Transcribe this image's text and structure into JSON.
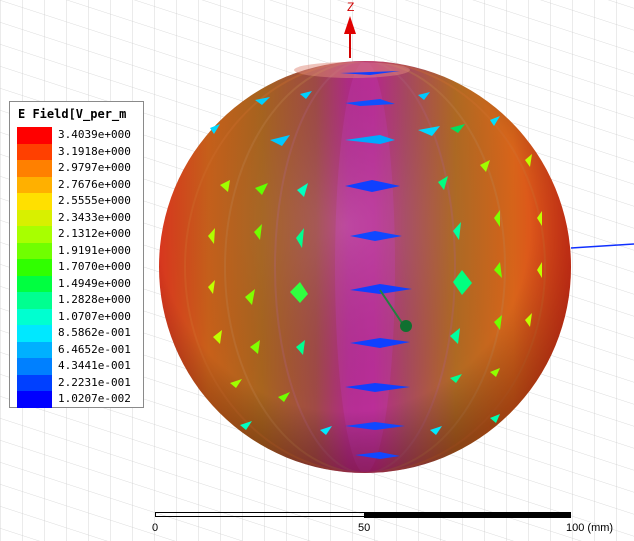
{
  "axis": {
    "z_label": "Z"
  },
  "legend": {
    "title": "E Field[V_per_m",
    "entries": [
      {
        "value": "3.4039e+000",
        "color": "#ff0000"
      },
      {
        "value": "3.1918e+000",
        "color": "#ff4000"
      },
      {
        "value": "2.9797e+000",
        "color": "#ff8000"
      },
      {
        "value": "2.7676e+000",
        "color": "#ffb000"
      },
      {
        "value": "2.5555e+000",
        "color": "#ffe000"
      },
      {
        "value": "2.3433e+000",
        "color": "#d8f000"
      },
      {
        "value": "2.1312e+000",
        "color": "#a8ff00"
      },
      {
        "value": "1.9191e+000",
        "color": "#70ff00"
      },
      {
        "value": "1.7070e+000",
        "color": "#30ff00"
      },
      {
        "value": "1.4949e+000",
        "color": "#00ff40"
      },
      {
        "value": "1.2828e+000",
        "color": "#00ff90"
      },
      {
        "value": "1.0707e+000",
        "color": "#00ffd0"
      },
      {
        "value": "8.5862e-001",
        "color": "#00e8ff"
      },
      {
        "value": "6.4652e-001",
        "color": "#00b0ff"
      },
      {
        "value": "4.3441e-001",
        "color": "#0080ff"
      },
      {
        "value": "2.2231e-001",
        "color": "#0040ff"
      },
      {
        "value": "1.0207e-002",
        "color": "#0000ff"
      }
    ]
  },
  "scale_bar": {
    "labels": [
      "0",
      "50",
      "100 (mm)"
    ]
  }
}
